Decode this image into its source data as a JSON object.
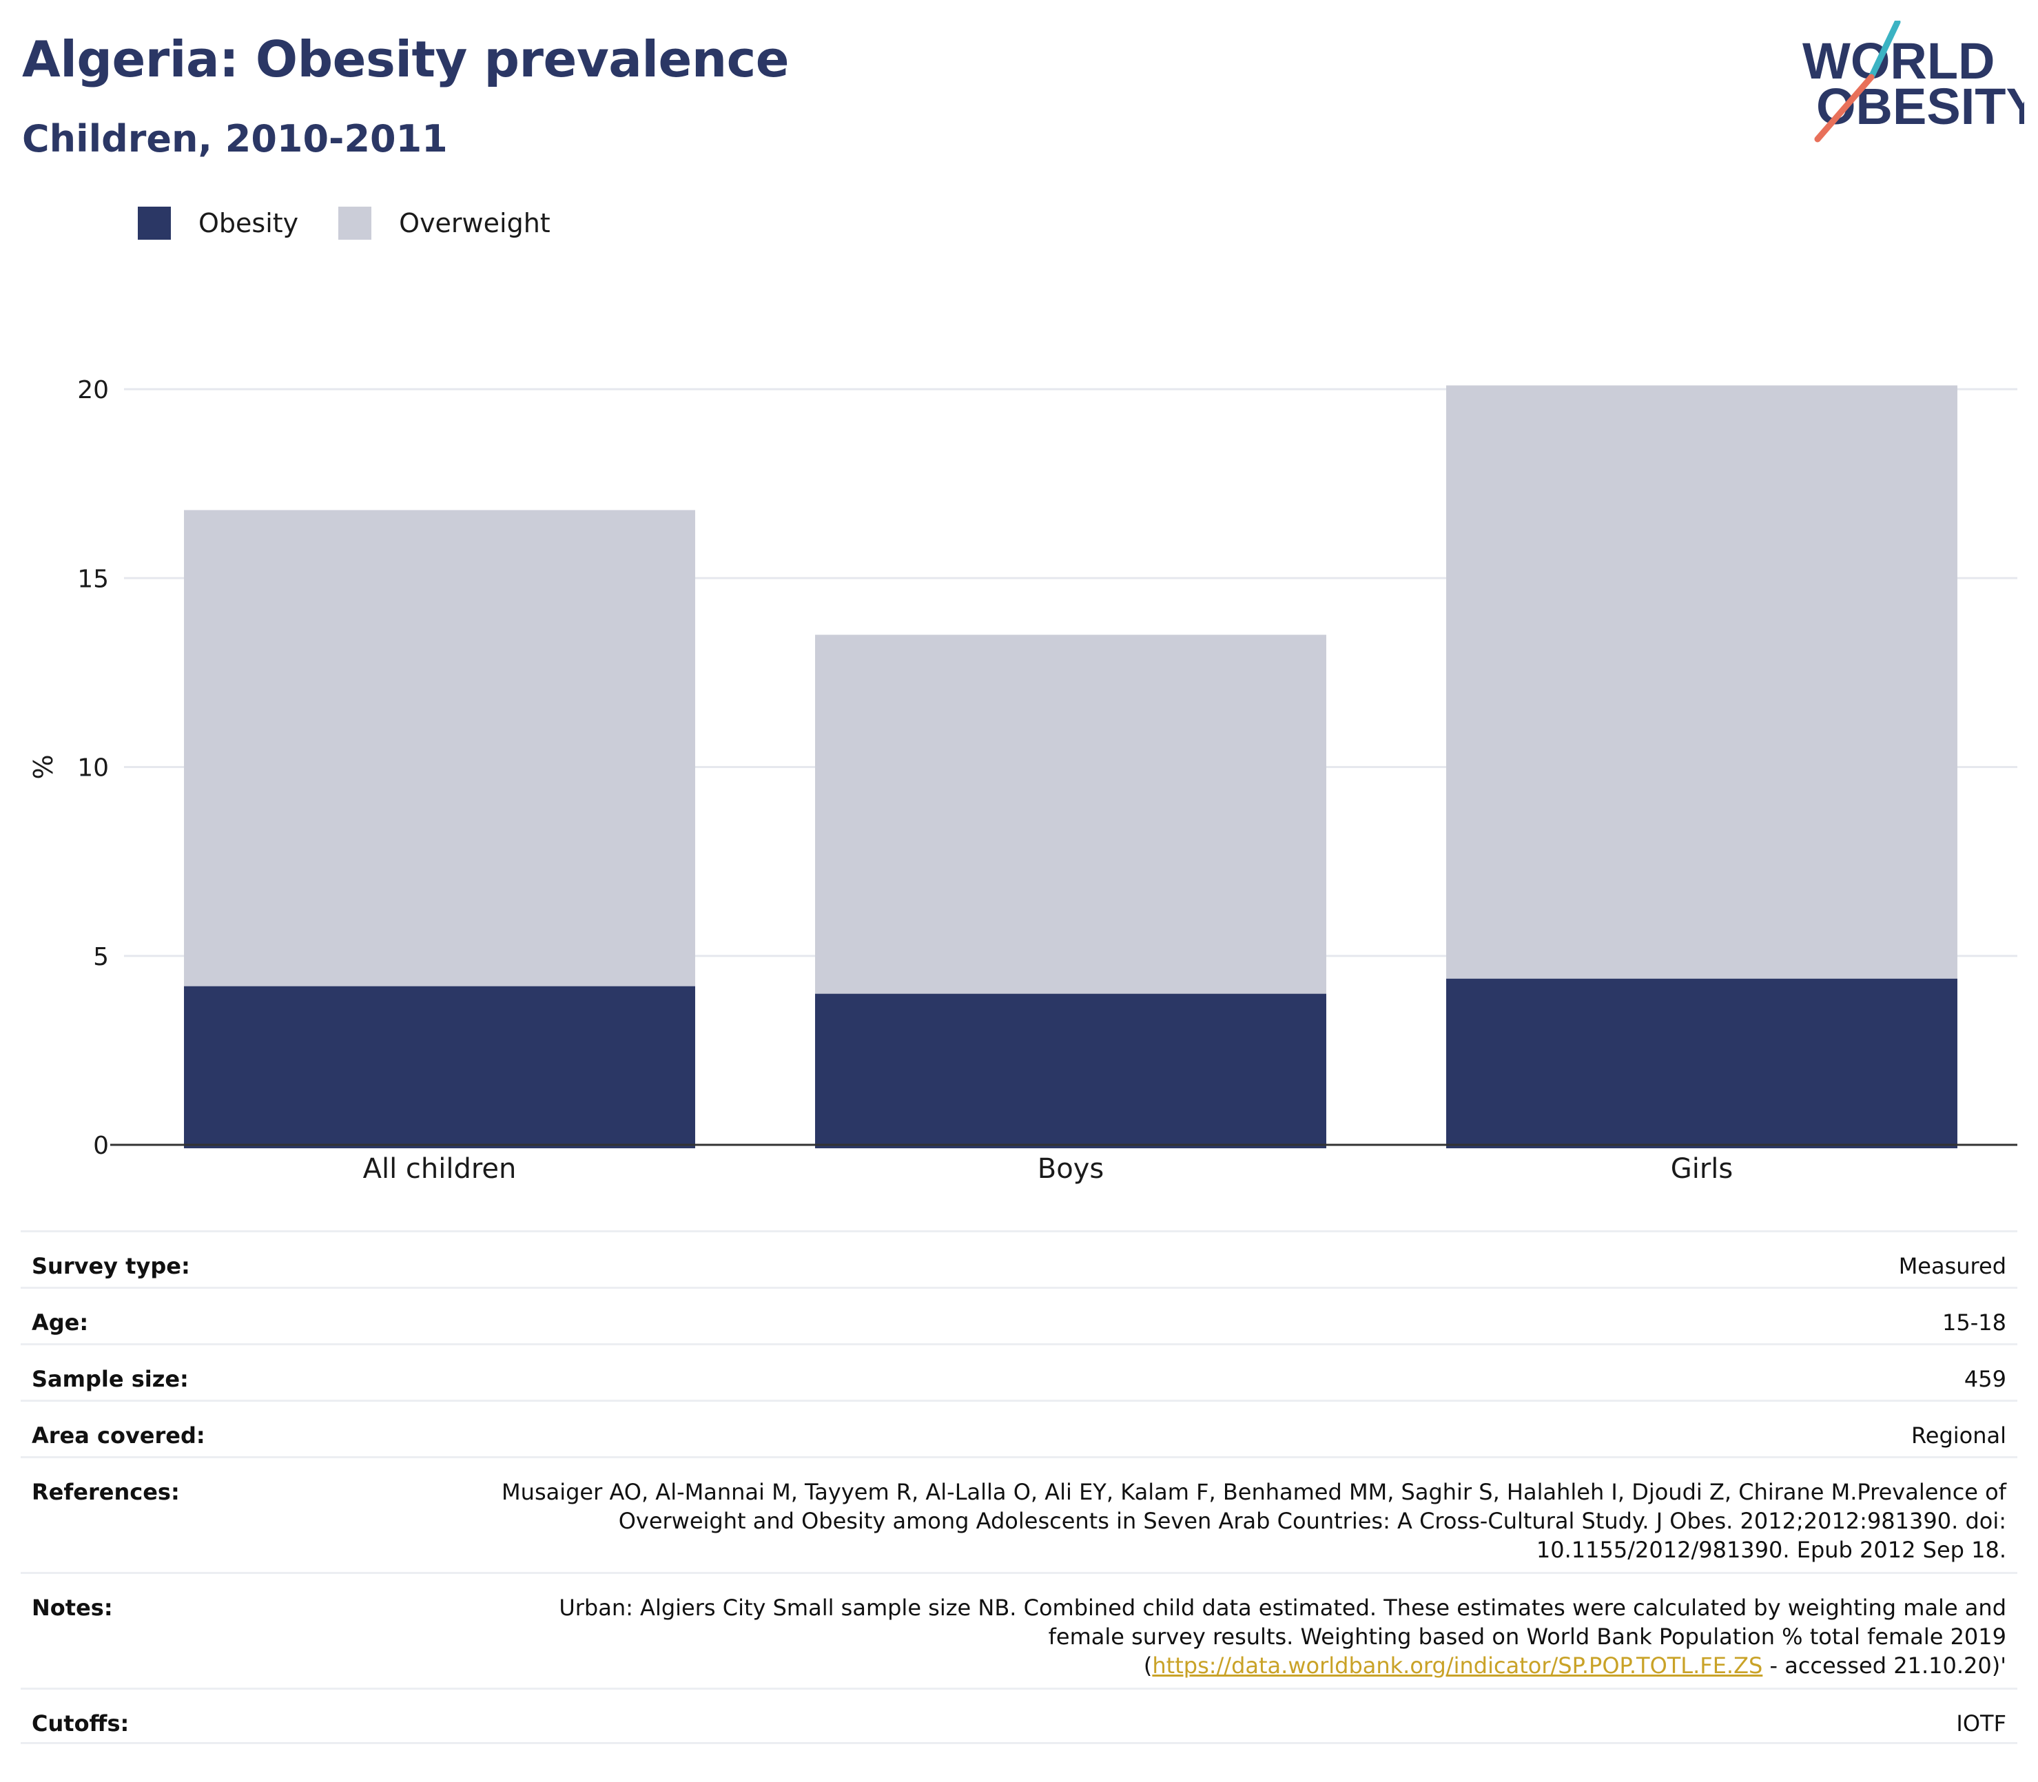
{
  "header": {
    "title": "Algeria: Obesity prevalence",
    "subtitle": "Children, 2010-2011"
  },
  "logo": {
    "line1": "WORLD",
    "line2": "OBESITY",
    "colors": {
      "text": "#2b3765",
      "slash_teal": "#3bb3c3",
      "slash_coral": "#e8705a"
    }
  },
  "colors": {
    "obesity": "#2b3765",
    "overweight": "#cbcdd8",
    "grid": "#e6e8ee",
    "axis": "#333333",
    "link": "#c9a227"
  },
  "chart_data": {
    "type": "bar",
    "stacked": true,
    "categories": [
      "All children",
      "Boys",
      "Girls"
    ],
    "series": [
      {
        "name": "Obesity",
        "values": [
          4.2,
          4.0,
          4.4
        ]
      },
      {
        "name": "Overweight",
        "values": [
          12.6,
          9.5,
          15.7
        ]
      }
    ],
    "ylabel": "%",
    "ylim": [
      0,
      20
    ],
    "yticks": [
      "0",
      "5",
      "10",
      "15",
      "20"
    ],
    "grid": true,
    "legend": "top-left"
  },
  "info": [
    {
      "label": "Survey type:",
      "value": "Measured"
    },
    {
      "label": "Age:",
      "value": "15-18"
    },
    {
      "label": "Sample size:",
      "value": "459"
    },
    {
      "label": "Area covered:",
      "value": "Regional"
    },
    {
      "label": "References:",
      "value": "Musaiger AO, Al-Mannai M, Tayyem R, Al-Lalla O, Ali EY, Kalam F, Benhamed MM, Saghir S, Halahleh I, Djoudi Z, Chirane M.Prevalence of Overweight and Obesity among Adolescents in Seven Arab Countries: A Cross-Cultural Study. J Obes. 2012;2012:981390. doi: 10.1155/2012/981390. Epub 2012 Sep 18."
    },
    {
      "label": "Notes:",
      "value": "Urban: Algiers City Small sample size NB. Combined child data estimated. These estimates were calculated by weighting male and female survey results. Weighting based on World Bank Population % total female 2019 (",
      "link": "https://data.worldbank.org/indicator/SP.POP.TOTL.FE.ZS",
      "value_after": " - accessed 21.10.20)'"
    },
    {
      "label": "Cutoffs:",
      "value": "IOTF"
    }
  ]
}
